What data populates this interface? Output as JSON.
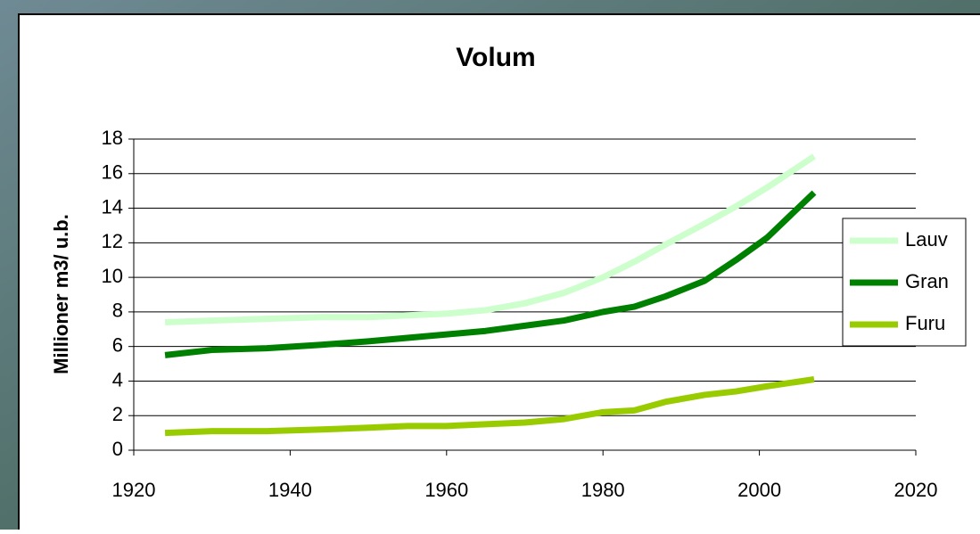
{
  "chart_data": {
    "type": "line",
    "title": "Volum",
    "y_label": "Millioner m3/ u.b.",
    "x": [
      1924,
      1930,
      1937,
      1944,
      1950,
      1955,
      1960,
      1965,
      1970,
      1975,
      1980,
      1984,
      1988,
      1993,
      1997,
      2001,
      2007
    ],
    "series": [
      {
        "name": "Lauv",
        "color": "#ccffcc",
        "values": [
          7.4,
          7.5,
          7.6,
          7.7,
          7.7,
          7.8,
          7.9,
          8.1,
          8.5,
          9.1,
          10,
          10.9,
          11.9,
          13.1,
          14.1,
          15.2,
          17.0
        ]
      },
      {
        "name": "Gran",
        "color": "#008000",
        "values": [
          5.5,
          5.8,
          5.9,
          6.1,
          6.3,
          6.5,
          6.7,
          6.9,
          7.2,
          7.5,
          8.0,
          8.3,
          8.9,
          9.8,
          11.0,
          12.3,
          14.9
        ]
      },
      {
        "name": "Furu",
        "color": "#99cc00",
        "values": [
          1.0,
          1.1,
          1.1,
          1.2,
          1.3,
          1.4,
          1.4,
          1.5,
          1.6,
          1.8,
          2.2,
          2.3,
          2.8,
          3.2,
          3.4,
          3.7,
          4.1
        ]
      }
    ],
    "xlim": [
      1920,
      2020
    ],
    "xticks": [
      1920,
      1940,
      1960,
      1980,
      2000,
      2020
    ],
    "ylim": [
      0,
      18
    ],
    "yticks": [
      0,
      2,
      4,
      6,
      8,
      10,
      12,
      14,
      16,
      18
    ],
    "grid": true,
    "legend": "right"
  }
}
